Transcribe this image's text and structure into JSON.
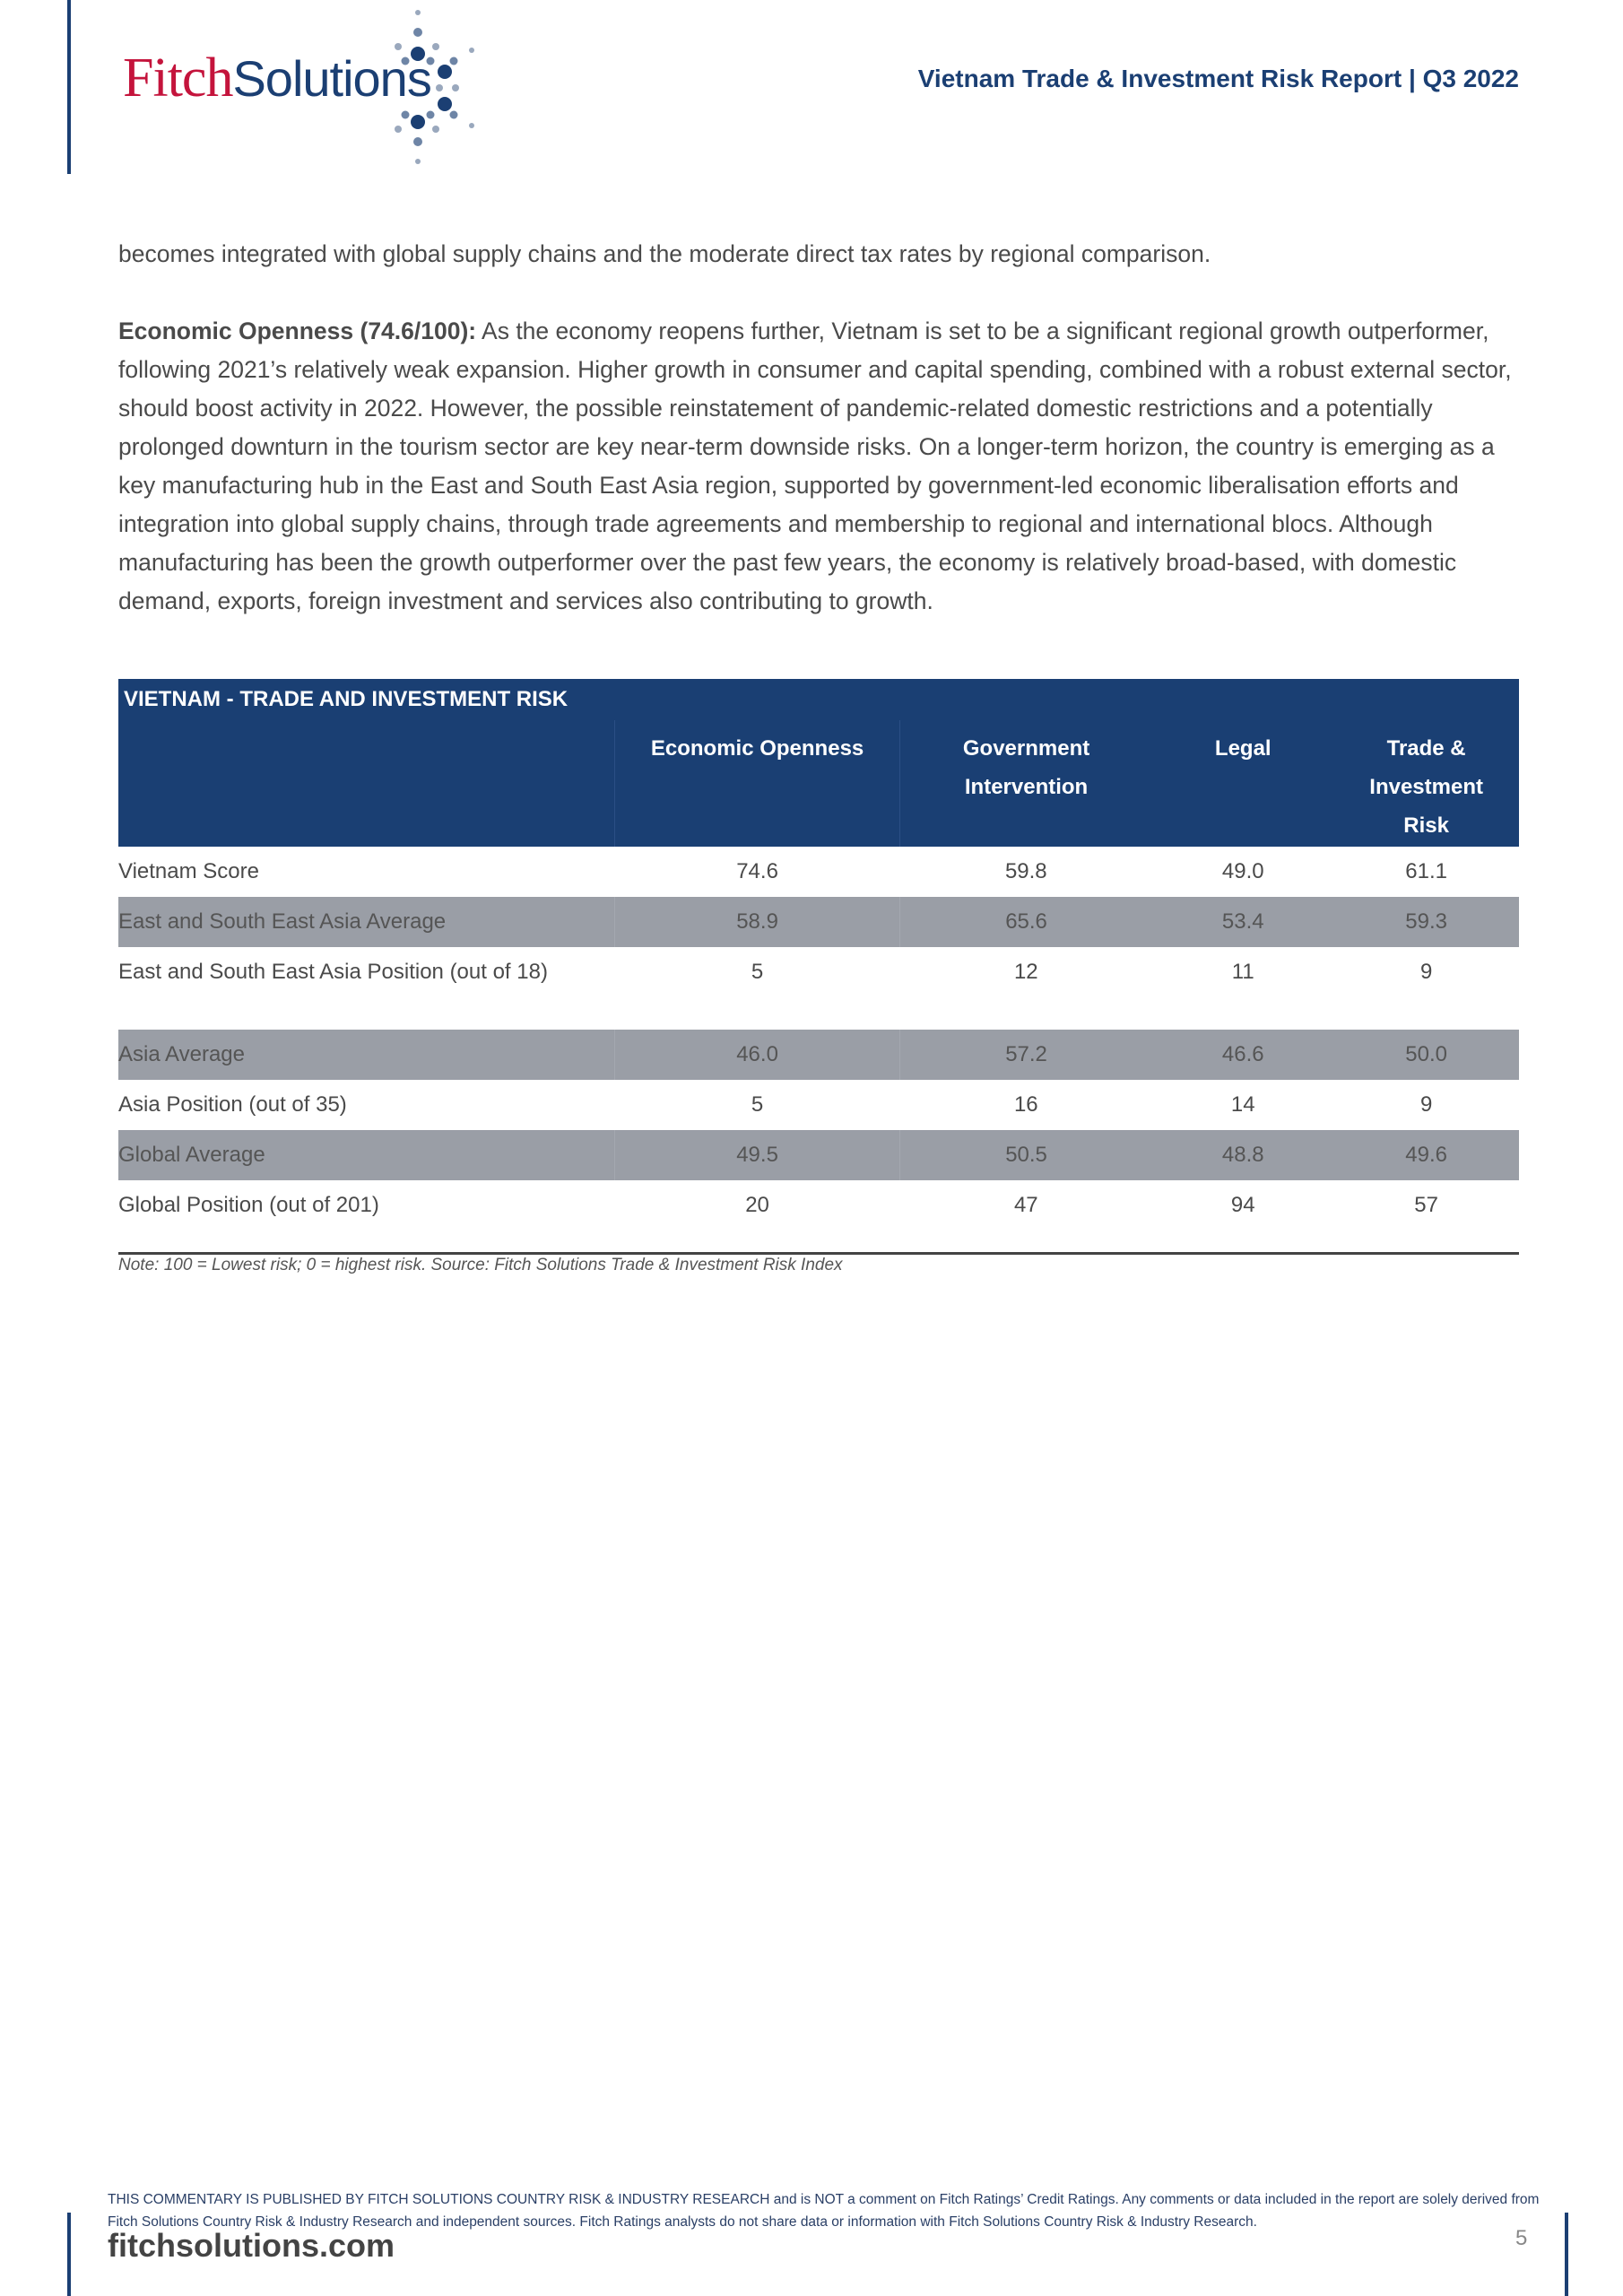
{
  "header": {
    "logo_part1": "Fitch",
    "logo_part2": "Solutions",
    "title": "Vietnam Trade & Investment Risk Report | Q3 2022"
  },
  "body": {
    "intro": "becomes integrated with global supply chains and the moderate direct tax rates by regional comparison.",
    "section_title": "Economic Openness (74.6/100):",
    "section_text": " As the economy reopens further, Vietnam is set to be a significant regional growth outperformer, following 2021’s relatively weak expansion. Higher growth in consumer and capital spending, combined with a robust external sector, should boost activity in 2022. However, the possible reinstatement of pandemic-related domestic restrictions and a potentially prolonged downturn in the tourism sector are key near-term downside risks. On a longer-term horizon, the country is emerging as a key manufacturing hub in the East and South East Asia region, supported by government-led economic liberalisation efforts and integration into global supply chains, through trade agreements and membership to regional and international blocs. Although manufacturing has been the growth outperformer over the past few years, the economy is relatively broad-based, with domestic demand, exports, foreign investment and services also contributing to growth."
  },
  "table": {
    "title": "VIETNAM - TRADE AND INVESTMENT RISK",
    "columns": [
      "Economic Openness",
      "Government Intervention",
      "Legal",
      "Trade & Investment Risk"
    ],
    "rows": [
      {
        "label": "Vietnam Score",
        "values": [
          "74.6",
          "59.8",
          "49.0",
          "61.1"
        ],
        "shaded": false
      },
      {
        "label": "East and South East Asia Average",
        "values": [
          "58.9",
          "65.6",
          "53.4",
          "59.3"
        ],
        "shaded": true
      },
      {
        "label": "East and South East Asia Position (out of 18)",
        "values": [
          "5",
          "12",
          "11",
          "9"
        ],
        "shaded": false
      },
      {
        "label": "Asia Average",
        "values": [
          "46.0",
          "57.2",
          "46.6",
          "50.0"
        ],
        "shaded": true
      },
      {
        "label": "Asia Position (out of 35)",
        "values": [
          "5",
          "16",
          "14",
          "9"
        ],
        "shaded": false
      },
      {
        "label": "Global Average",
        "values": [
          "49.5",
          "50.5",
          "48.8",
          "49.6"
        ],
        "shaded": true
      },
      {
        "label": "Global Position (out of 201)",
        "values": [
          "20",
          "47",
          "94",
          "57"
        ],
        "shaded": false
      }
    ],
    "note": "Note: 100 = Lowest risk; 0 = highest risk. Source: Fitch Solutions Trade & Investment Risk Index"
  },
  "footer": {
    "disclaimer": "THIS COMMENTARY IS PUBLISHED BY FITCH SOLUTIONS COUNTRY RISK & INDUSTRY RESEARCH and is NOT a comment on Fitch Ratings’ Credit Ratings. Any comments or data included in the report are solely derived from Fitch Solutions Country Risk & Industry Research and independent sources. Fitch Ratings analysts do not share data or information with Fitch Solutions Country Risk & Industry Research.",
    "site": "fitchsolutions.com",
    "page": "5"
  },
  "colors": {
    "brand_blue": "#1b3f73",
    "brand_red": "#c4143c",
    "shade": "#9a9ea6"
  }
}
